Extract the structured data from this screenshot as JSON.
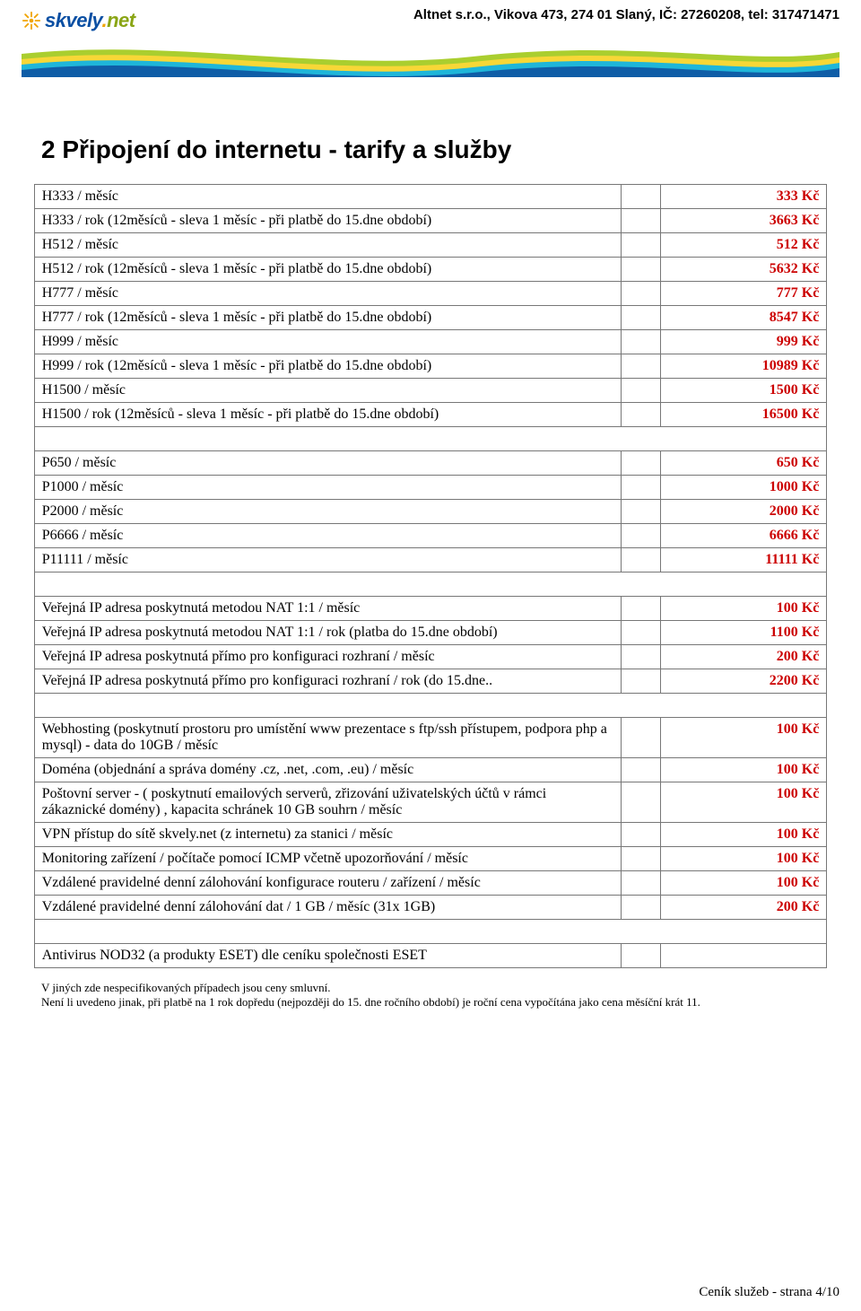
{
  "header": {
    "logo": {
      "skvely": "skvely",
      "dot": ".",
      "net": "net"
    },
    "company_line": "Altnet s.r.o., Vikova 473, 274 01 Slaný, IČ: 27260208, tel: 317471471"
  },
  "colors": {
    "price_red": "#cc0000",
    "border": "#777777",
    "wave_green": "#aace2f",
    "wave_yellow": "#f7d737",
    "wave_cyan": "#1fb6d9",
    "wave_blue": "#0f5da7",
    "logo_blue": "#0a4fa3",
    "logo_orange": "#f0a400",
    "logo_green": "#8aa515"
  },
  "title": "2 Připojení do internetu - tarify a služby",
  "rows": [
    {
      "label": "H333 / měsíc",
      "price": "333 Kč"
    },
    {
      "label": "H333 / rok (12měsíců - sleva 1 měsíc - při platbě do 15.dne období)",
      "price": "3663 Kč"
    },
    {
      "label": "H512 / měsíc",
      "price": "512 Kč"
    },
    {
      "label": "H512 / rok (12měsíců - sleva 1 měsíc - při platbě do 15.dne období)",
      "price": "5632 Kč"
    },
    {
      "label": "H777 / měsíc",
      "price": "777 Kč"
    },
    {
      "label": "H777 / rok (12měsíců - sleva 1 měsíc - při platbě do 15.dne období)",
      "price": "8547 Kč"
    },
    {
      "label": "H999 / měsíc",
      "price": "999 Kč"
    },
    {
      "label": "H999 / rok (12měsíců - sleva 1 měsíc - při platbě do 15.dne období)",
      "price": "10989 Kč"
    },
    {
      "label": "H1500 / měsíc",
      "price": "1500 Kč"
    },
    {
      "label": "H1500 / rok (12měsíců - sleva 1 měsíc - při platbě do 15.dne období)",
      "price": "16500 Kč"
    },
    {
      "blank": true
    },
    {
      "label": "P650 / měsíc",
      "price": "650 Kč"
    },
    {
      "label": "P1000 / měsíc",
      "price": "1000 Kč"
    },
    {
      "label": "P2000 / měsíc",
      "price": "2000 Kč"
    },
    {
      "label": "P6666 / měsíc",
      "price": "6666 Kč"
    },
    {
      "label": "P11111 / měsíc",
      "price": "11111 Kč"
    },
    {
      "blank": true
    },
    {
      "label": "Veřejná IP adresa poskytnutá metodou NAT 1:1 / měsíc",
      "price": "100 Kč"
    },
    {
      "label": "Veřejná IP adresa poskytnutá metodou NAT 1:1 / rok (platba do 15.dne období)",
      "price": "1100 Kč"
    },
    {
      "label": "Veřejná IP adresa poskytnutá přímo pro konfiguraci rozhraní / měsíc",
      "price": "200 Kč"
    },
    {
      "label": "Veřejná IP adresa poskytnutá přímo pro konfiguraci rozhraní / rok (do 15.dne..",
      "price": "2200 Kč"
    },
    {
      "blank": true
    },
    {
      "label": "Webhosting (poskytnutí prostoru pro umístění www prezentace s  ftp/ssh přístupem, podpora php a mysql) - data do 10GB / měsíc",
      "price": "100 Kč"
    },
    {
      "label": "Doména (objednání a správa domény .cz, .net, .com, .eu) / měsíc",
      "price": "100 Kč"
    },
    {
      "label": "Poštovní server - ( poskytnutí emailových serverů, zřizování uživatelských účtů v rámci zákaznické domény) , kapacita schránek 10 GB souhrn / měsíc",
      "price": "100 Kč"
    },
    {
      "label": "VPN přístup do sítě skvely.net (z internetu) za stanici / měsíc",
      "price": "100 Kč"
    },
    {
      "label": "Monitoring zařízení / počítače pomocí ICMP včetně upozorňování / měsíc",
      "price": "100 Kč"
    },
    {
      "label": "Vzdálené pravidelné denní zálohování konfigurace routeru / zařízení / měsíc",
      "price": "100 Kč"
    },
    {
      "label": "Vzdálené pravidelné denní zálohování dat / 1 GB / měsíc (31x 1GB)",
      "price": "200 Kč"
    },
    {
      "blank": true
    },
    {
      "label": "Antivirus NOD32 (a produkty ESET) dle ceníku společnosti ESET",
      "price": ""
    }
  ],
  "notes": {
    "line1": "V jiných zde nespecifikovaných případech jsou ceny smluvní.",
    "line2": "Není li uvedeno jinak, při platbě na 1 rok dopředu (nejpozději do 15. dne ročního období) je roční cena vypočítána jako cena měsíční krát 11."
  },
  "footer": "Ceník služeb - strana 4/10"
}
